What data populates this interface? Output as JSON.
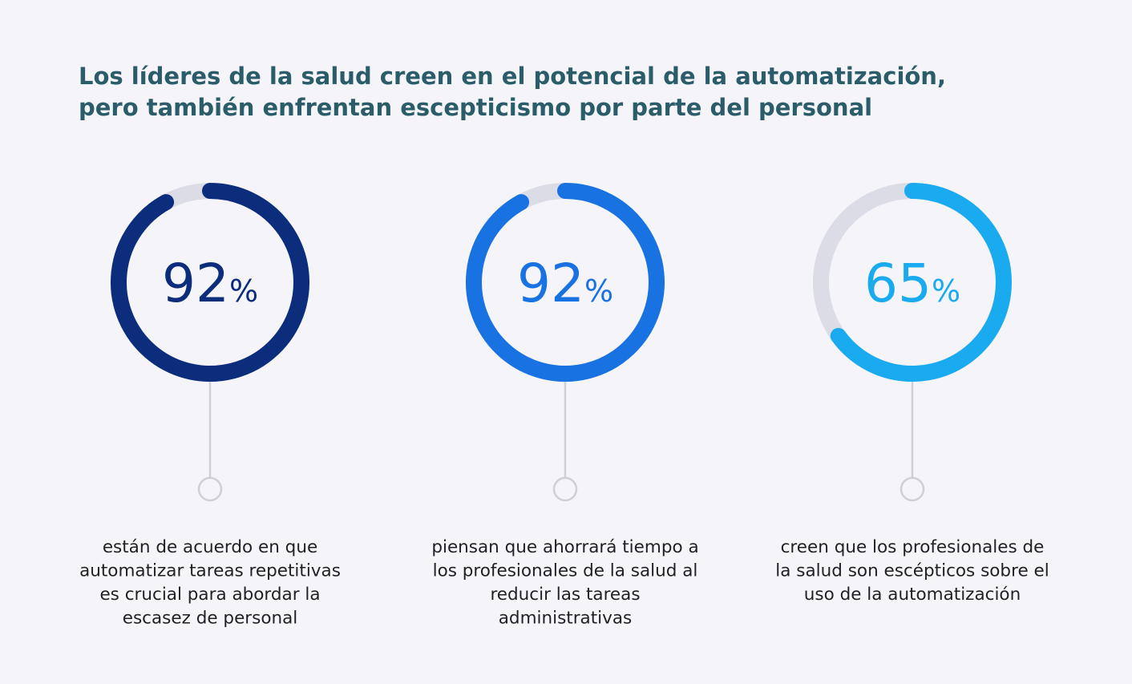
{
  "title": [
    "Los líderes de la salud creen en el potencial de la automatización,",
    "pero también enfrentan escepticismo por parte del personal"
  ],
  "chart_data": [
    {
      "type": "donut",
      "values": [
        92
      ],
      "value_labels": [
        "92%"
      ],
      "color": "#0b2d7c",
      "caption": [
        "están de acuerdo en que",
        "automatizar tareas repetitivas",
        "es crucial para abordar la",
        "escasez de personal"
      ]
    },
    {
      "type": "donut",
      "values": [
        92
      ],
      "value_labels": [
        "92%"
      ],
      "color": "#1872e2",
      "caption": [
        "piensan que ahorrará tiempo a",
        "los profesionales de la salud al",
        "reducir las tareas",
        "administrativas"
      ]
    },
    {
      "type": "donut",
      "values": [
        65
      ],
      "value_labels": [
        "65%"
      ],
      "color": "#1aaaf0",
      "caption": [
        "creen que los profesionales de",
        "la salud son escépticos sobre el",
        "uso de la automatización"
      ]
    }
  ]
}
